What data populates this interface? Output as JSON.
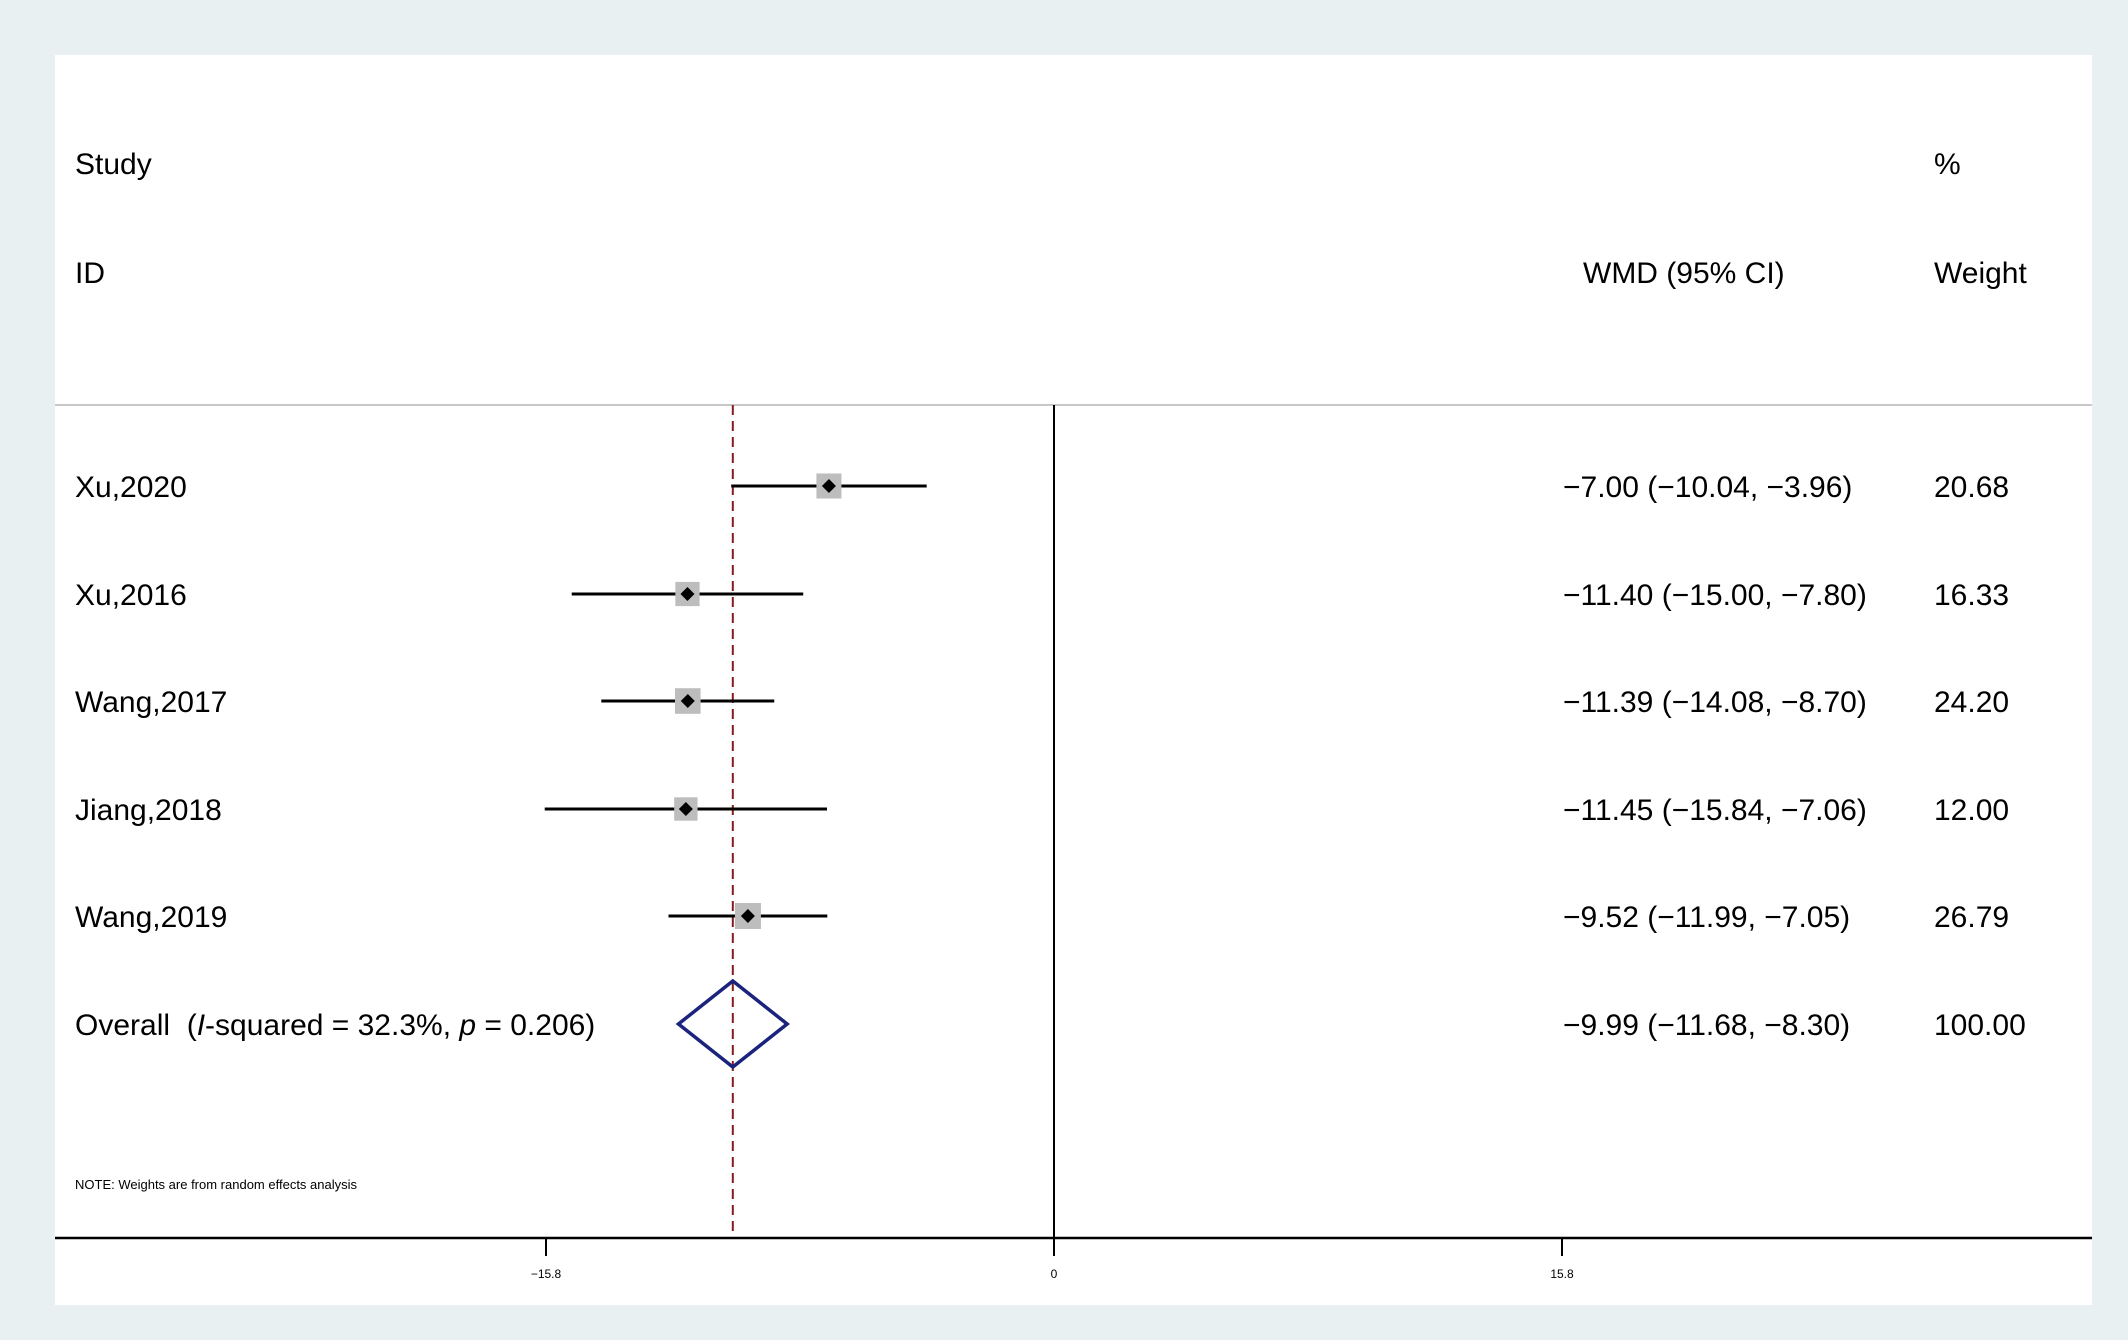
{
  "chart_data": {
    "type": "forest",
    "headers": {
      "study_line1": "Study",
      "study_line2": "ID",
      "effect": "WMD (95% CI)",
      "weight_line1": "%",
      "weight_line2": "Weight"
    },
    "studies": [
      {
        "id": "Xu,2020",
        "est": -7.0,
        "lo": -10.04,
        "hi": -3.96,
        "ci_text": "−7.00 (−10.04, −3.96)",
        "weight": 20.68,
        "weight_text": "20.68"
      },
      {
        "id": "Xu,2016",
        "est": -11.4,
        "lo": -15.0,
        "hi": -7.8,
        "ci_text": "−11.40 (−15.00, −7.80)",
        "weight": 16.33,
        "weight_text": "16.33"
      },
      {
        "id": "Wang,2017",
        "est": -11.39,
        "lo": -14.08,
        "hi": -8.7,
        "ci_text": "−11.39 (−14.08, −8.70)",
        "weight": 24.2,
        "weight_text": "24.20"
      },
      {
        "id": "Jiang,2018",
        "est": -11.45,
        "lo": -15.84,
        "hi": -7.06,
        "ci_text": "−11.45 (−15.84, −7.06)",
        "weight": 12.0,
        "weight_text": "12.00"
      },
      {
        "id": "Wang,2019",
        "est": -9.52,
        "lo": -11.99,
        "hi": -7.05,
        "ci_text": "−9.52 (−11.99, −7.05)",
        "weight": 26.79,
        "weight_text": "26.79"
      }
    ],
    "overall": {
      "label_prefix": "Overall  (",
      "label_i": "I",
      "label_mid": "-squared = 32.3%, ",
      "label_p": "p",
      "label_suffix": " = 0.206)",
      "est": -9.99,
      "lo": -11.68,
      "hi": -8.3,
      "ci_text": "−9.99 (−11.68, −8.30)",
      "weight_text": "100.00"
    },
    "note": "NOTE: Weights are from random effects analysis",
    "x_ticks": [
      -15.8,
      0,
      15.8
    ],
    "x_tick_labels": [
      "−15.8",
      "0",
      "15.8"
    ],
    "xlim": [
      -31.6,
      31.6
    ],
    "colors": {
      "background": "#e8f0f1",
      "panel": "#ffffff",
      "marker_box": "#bdbdbd",
      "ci_line": "#000000",
      "overall_diamond": "#1a237e",
      "overall_line": "#8b1a1a",
      "separator": "#c8c8c8"
    }
  }
}
